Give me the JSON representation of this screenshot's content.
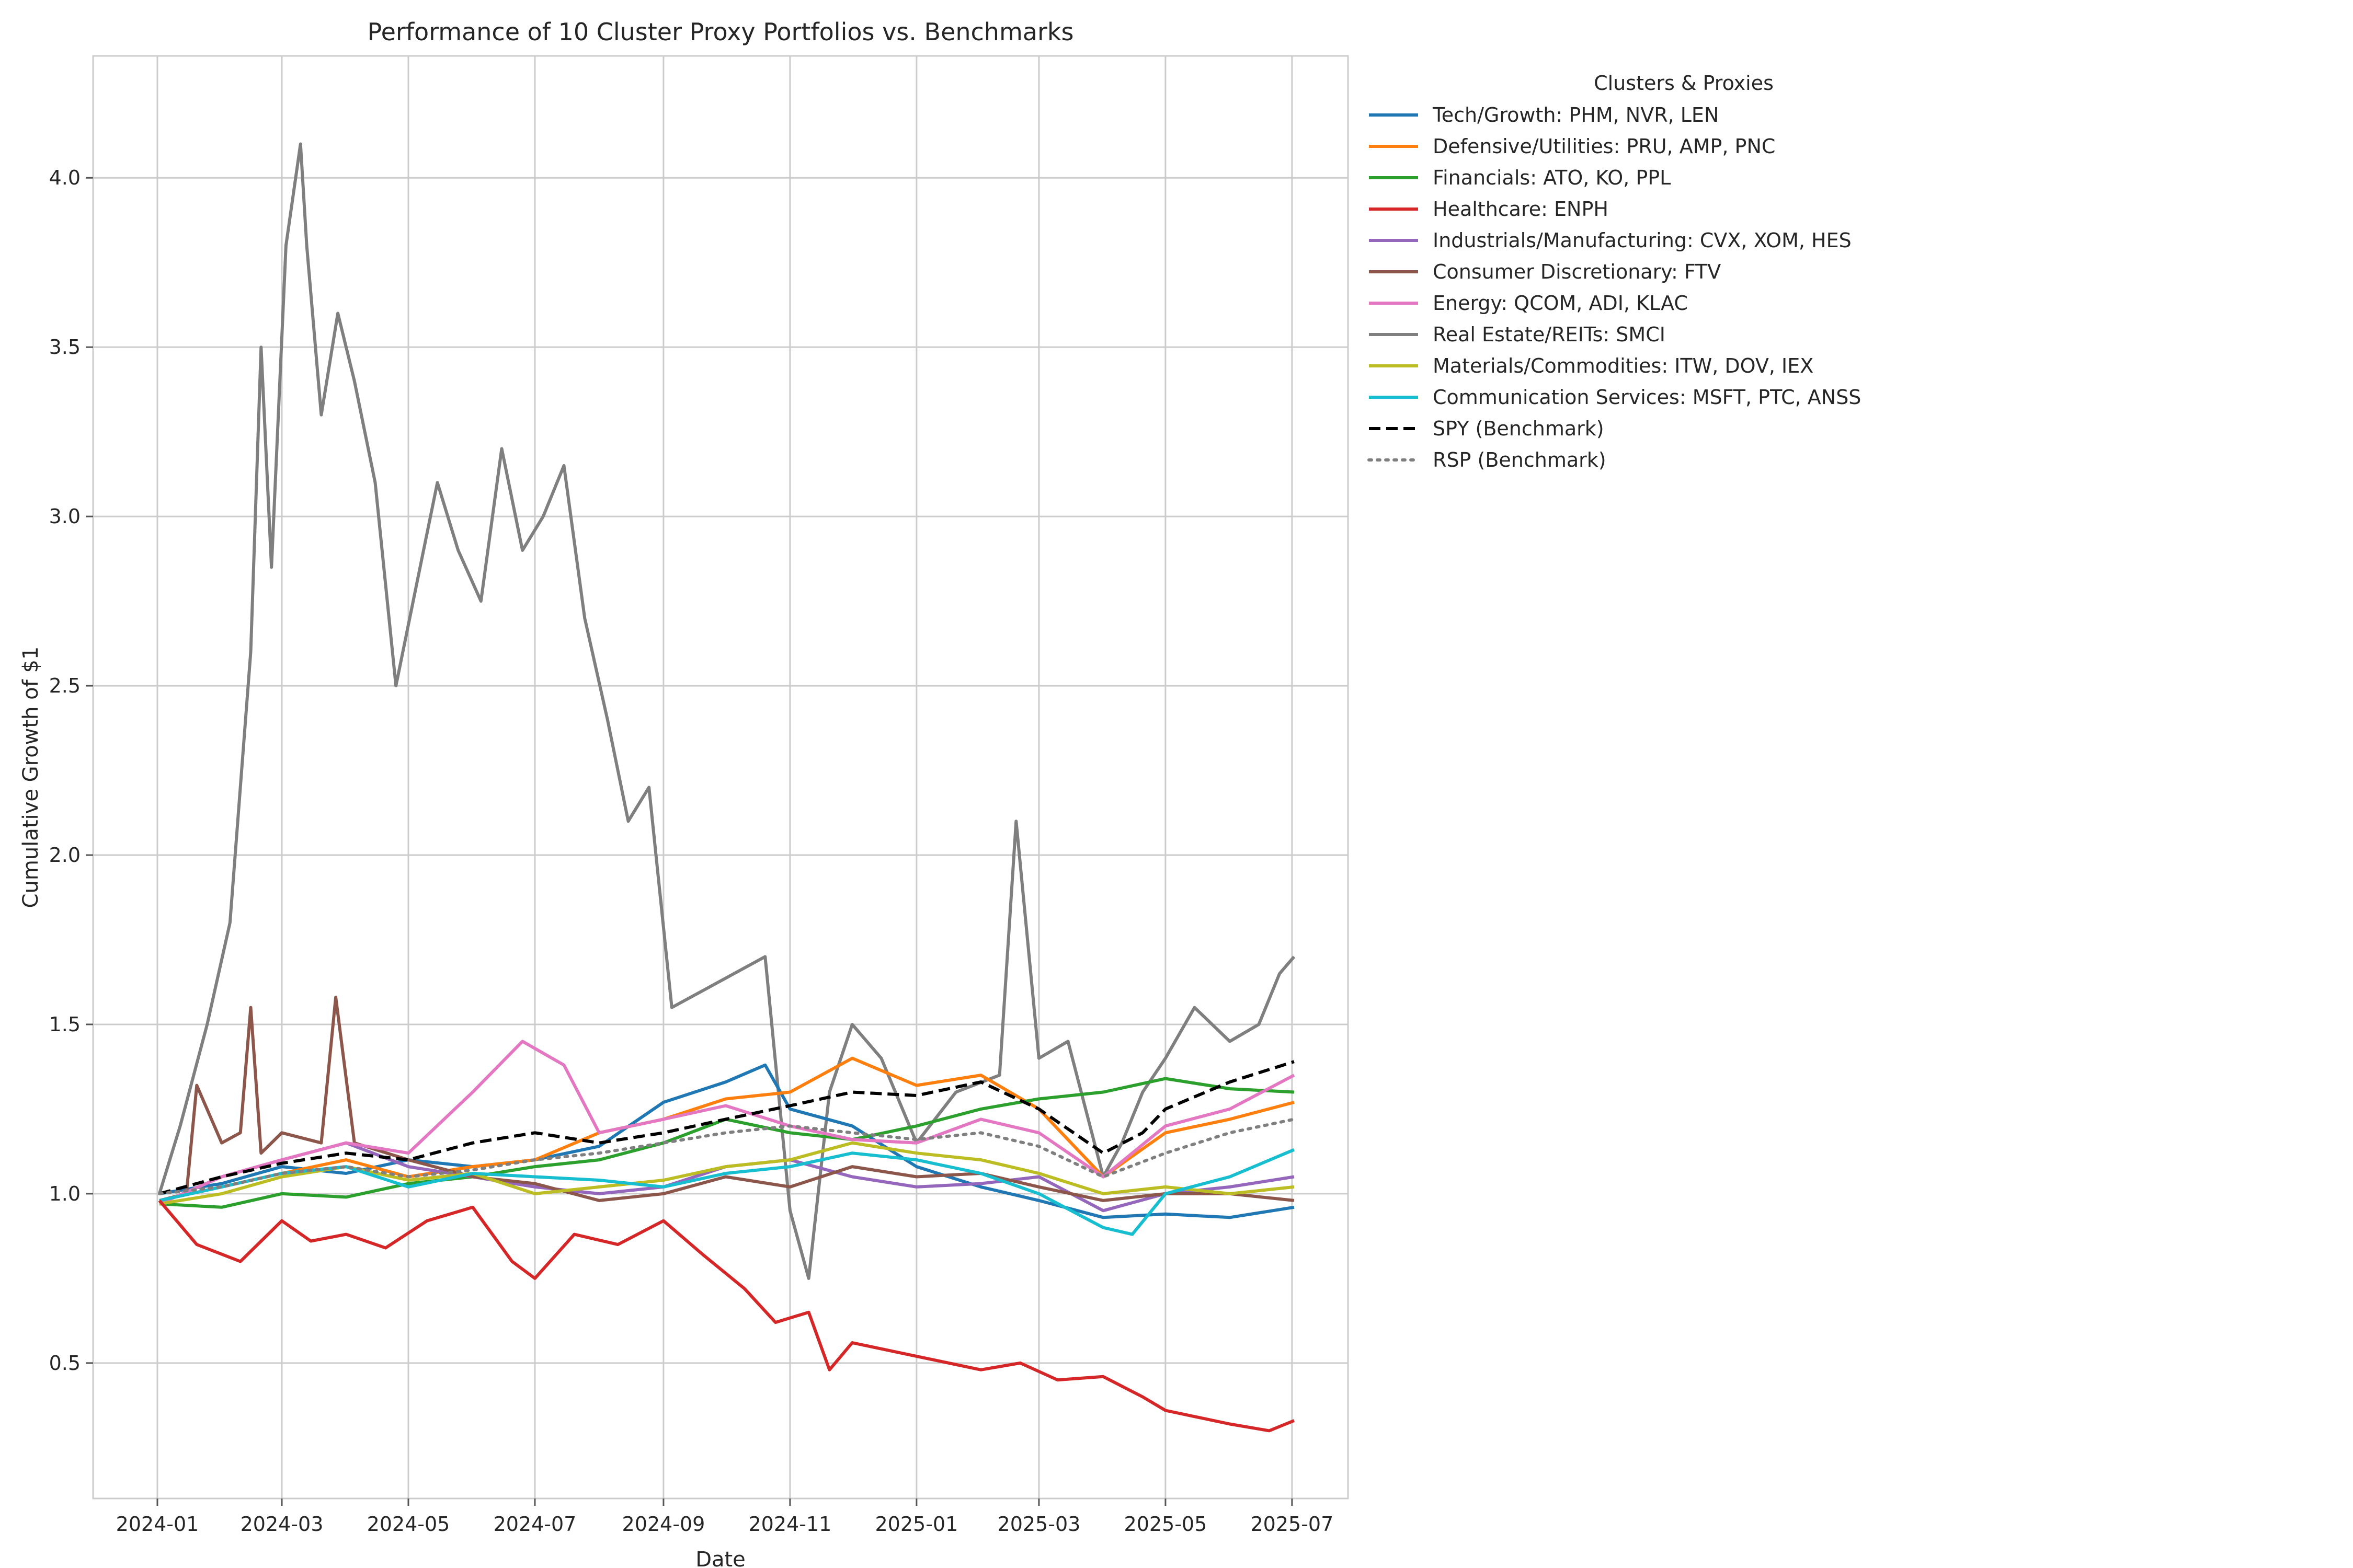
{
  "chart_data": {
    "type": "line",
    "title": "Performance of 10 Cluster Proxy Portfolios vs. Benchmarks",
    "xlabel": "Date",
    "ylabel": "Cumulative Growth of $1",
    "x_range": [
      "2023-12-01",
      "2025-07-28"
    ],
    "ylim": [
      0.1,
      4.36
    ],
    "x_ticks": [
      "2024-01",
      "2024-03",
      "2024-05",
      "2024-07",
      "2024-09",
      "2024-11",
      "2025-01",
      "2025-03",
      "2025-05",
      "2025-07"
    ],
    "y_ticks": [
      0.5,
      1.0,
      1.5,
      2.0,
      2.5,
      3.0,
      3.5,
      4.0
    ],
    "y_tick_labels": [
      "0.5",
      "1.0",
      "1.5",
      "2.0",
      "2.5",
      "3.0",
      "3.5",
      "4.0"
    ],
    "grid": true,
    "legend": {
      "title": "Clusters & Proxies",
      "placement": "outside right, top"
    },
    "series": [
      {
        "name": "Tech/Growth: PHM, NVR, LEN",
        "color": "#1f77b4",
        "style": "solid",
        "x": [
          "2024-01-02",
          "2024-02-01",
          "2024-03-01",
          "2024-04-01",
          "2024-05-01",
          "2024-06-01",
          "2024-07-01",
          "2024-08-01",
          "2024-09-01",
          "2024-10-01",
          "2024-10-20",
          "2024-11-01",
          "2024-12-01",
          "2025-01-01",
          "2025-02-01",
          "2025-03-01",
          "2025-04-01",
          "2025-05-01",
          "2025-06-01",
          "2025-07-02"
        ],
        "values": [
          1.0,
          1.03,
          1.08,
          1.06,
          1.1,
          1.08,
          1.1,
          1.14,
          1.27,
          1.33,
          1.38,
          1.25,
          1.2,
          1.08,
          1.02,
          0.98,
          0.93,
          0.94,
          0.93,
          0.96
        ]
      },
      {
        "name": "Defensive/Utilities: PRU, AMP, PNC",
        "color": "#ff7f0e",
        "style": "solid",
        "x": [
          "2024-01-02",
          "2024-02-01",
          "2024-03-01",
          "2024-04-01",
          "2024-05-01",
          "2024-06-01",
          "2024-07-01",
          "2024-08-01",
          "2024-09-01",
          "2024-10-01",
          "2024-11-01",
          "2024-12-01",
          "2025-01-01",
          "2025-02-01",
          "2025-03-01",
          "2025-04-01",
          "2025-05-01",
          "2025-06-01",
          "2025-07-02"
        ],
        "values": [
          0.98,
          1.02,
          1.06,
          1.1,
          1.05,
          1.08,
          1.1,
          1.18,
          1.22,
          1.28,
          1.3,
          1.4,
          1.32,
          1.35,
          1.25,
          1.05,
          1.18,
          1.22,
          1.27
        ]
      },
      {
        "name": "Financials: ATO, KO, PPL",
        "color": "#2ca02c",
        "style": "solid",
        "x": [
          "2024-01-02",
          "2024-02-01",
          "2024-03-01",
          "2024-04-01",
          "2024-05-01",
          "2024-06-01",
          "2024-07-01",
          "2024-08-01",
          "2024-09-01",
          "2024-10-01",
          "2024-11-01",
          "2024-12-01",
          "2025-01-01",
          "2025-02-01",
          "2025-03-01",
          "2025-04-01",
          "2025-05-01",
          "2025-06-01",
          "2025-07-02"
        ],
        "values": [
          0.97,
          0.96,
          1.0,
          0.99,
          1.03,
          1.05,
          1.08,
          1.1,
          1.15,
          1.22,
          1.18,
          1.16,
          1.2,
          1.25,
          1.28,
          1.3,
          1.34,
          1.31,
          1.3
        ]
      },
      {
        "name": "Healthcare: ENPH",
        "color": "#d62728",
        "style": "solid",
        "x": [
          "2024-01-02",
          "2024-01-20",
          "2024-02-10",
          "2024-03-01",
          "2024-03-15",
          "2024-04-01",
          "2024-04-20",
          "2024-05-10",
          "2024-06-01",
          "2024-06-20",
          "2024-07-01",
          "2024-07-20",
          "2024-08-10",
          "2024-09-01",
          "2024-09-20",
          "2024-10-10",
          "2024-10-25",
          "2024-11-10",
          "2024-11-20",
          "2024-12-01",
          "2025-01-01",
          "2025-02-01",
          "2025-02-20",
          "2025-03-10",
          "2025-04-01",
          "2025-04-20",
          "2025-05-01",
          "2025-06-01",
          "2025-06-20",
          "2025-07-02"
        ],
        "values": [
          0.98,
          0.85,
          0.8,
          0.92,
          0.86,
          0.88,
          0.84,
          0.92,
          0.96,
          0.8,
          0.75,
          0.88,
          0.85,
          0.92,
          0.82,
          0.72,
          0.62,
          0.65,
          0.48,
          0.56,
          0.52,
          0.48,
          0.5,
          0.45,
          0.46,
          0.4,
          0.36,
          0.32,
          0.3,
          0.33
        ]
      },
      {
        "name": "Industrials/Manufacturing: CVX, XOM, HES",
        "color": "#9467bd",
        "style": "solid",
        "x": [
          "2024-01-02",
          "2024-02-01",
          "2024-03-01",
          "2024-04-01",
          "2024-05-01",
          "2024-06-01",
          "2024-07-01",
          "2024-08-01",
          "2024-09-01",
          "2024-10-01",
          "2024-11-01",
          "2024-12-01",
          "2025-01-01",
          "2025-02-01",
          "2025-03-01",
          "2025-04-01",
          "2025-05-01",
          "2025-06-01",
          "2025-07-02"
        ],
        "values": [
          0.97,
          1.05,
          1.1,
          1.15,
          1.08,
          1.05,
          1.02,
          1.0,
          1.02,
          1.08,
          1.1,
          1.05,
          1.02,
          1.03,
          1.05,
          0.95,
          1.0,
          1.02,
          1.05
        ]
      },
      {
        "name": "Consumer Discretionary: FTV",
        "color": "#8c564b",
        "style": "solid",
        "x": [
          "2024-01-02",
          "2024-01-15",
          "2024-01-20",
          "2024-02-01",
          "2024-02-10",
          "2024-02-15",
          "2024-02-20",
          "2024-03-01",
          "2024-03-20",
          "2024-03-27",
          "2024-04-05",
          "2024-05-01",
          "2024-06-01",
          "2024-07-01",
          "2024-08-01",
          "2024-09-01",
          "2024-10-01",
          "2024-11-01",
          "2024-12-01",
          "2025-01-01",
          "2025-02-01",
          "2025-03-01",
          "2025-04-01",
          "2025-05-01",
          "2025-06-01",
          "2025-07-02"
        ],
        "values": [
          0.98,
          1.0,
          1.32,
          1.15,
          1.18,
          1.55,
          1.12,
          1.18,
          1.15,
          1.58,
          1.15,
          1.1,
          1.05,
          1.03,
          0.98,
          1.0,
          1.05,
          1.02,
          1.08,
          1.05,
          1.06,
          1.02,
          0.98,
          1.0,
          1.0,
          0.98
        ]
      },
      {
        "name": "Energy: QCOM, ADI, KLAC",
        "color": "#e377c2",
        "style": "solid",
        "x": [
          "2024-01-02",
          "2024-02-01",
          "2024-03-01",
          "2024-04-01",
          "2024-05-01",
          "2024-06-01",
          "2024-06-25",
          "2024-07-15",
          "2024-08-01",
          "2024-09-01",
          "2024-10-01",
          "2024-11-01",
          "2024-12-01",
          "2025-01-01",
          "2025-02-01",
          "2025-03-01",
          "2025-04-01",
          "2025-05-01",
          "2025-06-01",
          "2025-07-02"
        ],
        "values": [
          0.97,
          1.05,
          1.1,
          1.15,
          1.12,
          1.3,
          1.45,
          1.38,
          1.18,
          1.22,
          1.26,
          1.2,
          1.16,
          1.15,
          1.22,
          1.18,
          1.05,
          1.2,
          1.25,
          1.35
        ]
      },
      {
        "name": "Real Estate/REITs: SMCI",
        "color": "#7f7f7f",
        "style": "solid",
        "x": [
          "2024-01-02",
          "2024-01-12",
          "2024-01-25",
          "2024-02-05",
          "2024-02-15",
          "2024-02-20",
          "2024-02-25",
          "2024-03-03",
          "2024-03-10",
          "2024-03-13",
          "2024-03-20",
          "2024-03-28",
          "2024-04-05",
          "2024-04-15",
          "2024-04-25",
          "2024-05-05",
          "2024-05-15",
          "2024-05-25",
          "2024-06-05",
          "2024-06-15",
          "2024-06-25",
          "2024-07-05",
          "2024-07-15",
          "2024-07-25",
          "2024-08-05",
          "2024-08-15",
          "2024-08-25",
          "2024-09-05",
          "2024-09-20",
          "2024-10-05",
          "2024-10-20",
          "2024-11-01",
          "2024-11-10",
          "2024-11-20",
          "2024-12-01",
          "2024-12-15",
          "2025-01-01",
          "2025-01-20",
          "2025-02-10",
          "2025-02-18",
          "2025-03-01",
          "2025-03-15",
          "2025-04-01",
          "2025-04-10",
          "2025-04-20",
          "2025-05-01",
          "2025-05-15",
          "2025-06-01",
          "2025-06-15",
          "2025-06-25",
          "2025-07-02"
        ],
        "values": [
          1.0,
          1.2,
          1.5,
          1.8,
          2.6,
          3.5,
          2.85,
          3.8,
          4.1,
          3.8,
          3.3,
          3.6,
          3.4,
          3.1,
          2.5,
          2.8,
          3.1,
          2.9,
          2.75,
          3.2,
          2.9,
          3.0,
          3.15,
          2.7,
          2.4,
          2.1,
          2.2,
          1.55,
          1.6,
          1.65,
          1.7,
          0.95,
          0.75,
          1.3,
          1.5,
          1.4,
          1.15,
          1.3,
          1.35,
          2.1,
          1.4,
          1.45,
          1.05,
          1.15,
          1.3,
          1.4,
          1.55,
          1.45,
          1.5,
          1.65,
          1.7
        ]
      },
      {
        "name": "Materials/Commodities: ITW, DOV, IEX",
        "color": "#bcbd22",
        "style": "solid",
        "x": [
          "2024-01-02",
          "2024-02-01",
          "2024-03-01",
          "2024-04-01",
          "2024-05-01",
          "2024-06-01",
          "2024-07-01",
          "2024-08-01",
          "2024-09-01",
          "2024-10-01",
          "2024-11-01",
          "2024-12-01",
          "2025-01-01",
          "2025-02-01",
          "2025-03-01",
          "2025-04-01",
          "2025-05-01",
          "2025-06-01",
          "2025-07-02"
        ],
        "values": [
          0.97,
          1.0,
          1.05,
          1.08,
          1.04,
          1.06,
          1.0,
          1.02,
          1.04,
          1.08,
          1.1,
          1.15,
          1.12,
          1.1,
          1.06,
          1.0,
          1.02,
          1.0,
          1.02
        ]
      },
      {
        "name": "Communication Services: MSFT, PTC, ANSS",
        "color": "#17becf",
        "style": "solid",
        "x": [
          "2024-01-02",
          "2024-02-01",
          "2024-03-01",
          "2024-04-01",
          "2024-05-01",
          "2024-06-01",
          "2024-07-01",
          "2024-08-01",
          "2024-09-01",
          "2024-10-01",
          "2024-11-01",
          "2024-12-01",
          "2025-01-01",
          "2025-02-01",
          "2025-03-01",
          "2025-04-01",
          "2025-04-15",
          "2025-05-01",
          "2025-06-01",
          "2025-07-02"
        ],
        "values": [
          0.98,
          1.02,
          1.06,
          1.08,
          1.02,
          1.06,
          1.05,
          1.04,
          1.02,
          1.06,
          1.08,
          1.12,
          1.1,
          1.06,
          1.0,
          0.9,
          0.88,
          1.0,
          1.05,
          1.13
        ]
      },
      {
        "name": "SPY (Benchmark)",
        "color": "#000000",
        "style": "dashed",
        "x": [
          "2024-01-02",
          "2024-02-01",
          "2024-03-01",
          "2024-04-01",
          "2024-05-01",
          "2024-06-01",
          "2024-07-01",
          "2024-08-01",
          "2024-09-01",
          "2024-10-01",
          "2024-11-01",
          "2024-12-01",
          "2025-01-01",
          "2025-02-01",
          "2025-03-01",
          "2025-04-01",
          "2025-04-20",
          "2025-05-01",
          "2025-06-01",
          "2025-07-02"
        ],
        "values": [
          1.0,
          1.05,
          1.09,
          1.12,
          1.1,
          1.15,
          1.18,
          1.15,
          1.18,
          1.22,
          1.26,
          1.3,
          1.29,
          1.33,
          1.25,
          1.12,
          1.18,
          1.25,
          1.33,
          1.39
        ]
      },
      {
        "name": "RSP (Benchmark)",
        "color": "#7f7f7f",
        "style": "dotted",
        "x": [
          "2024-01-02",
          "2024-02-01",
          "2024-03-01",
          "2024-04-01",
          "2024-05-01",
          "2024-06-01",
          "2024-07-01",
          "2024-08-01",
          "2024-09-01",
          "2024-10-01",
          "2024-11-01",
          "2024-12-01",
          "2025-01-01",
          "2025-02-01",
          "2025-03-01",
          "2025-04-01",
          "2025-05-01",
          "2025-06-01",
          "2025-07-02"
        ],
        "values": [
          1.0,
          1.02,
          1.06,
          1.08,
          1.05,
          1.07,
          1.1,
          1.12,
          1.15,
          1.18,
          1.2,
          1.18,
          1.16,
          1.18,
          1.14,
          1.05,
          1.12,
          1.18,
          1.22
        ]
      }
    ]
  }
}
